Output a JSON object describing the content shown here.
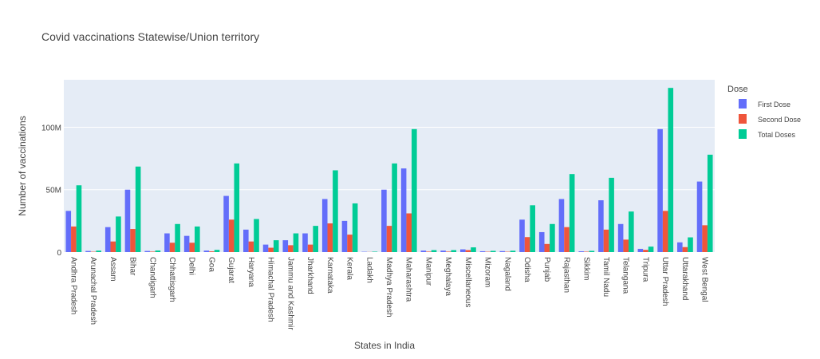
{
  "chart_data": {
    "type": "bar",
    "title": "Covid vaccinations Statewise/Union territory",
    "xlabel": "States in India",
    "ylabel": "Number of vaccinations",
    "ylim": [
      0,
      138000000
    ],
    "yticks": [
      0,
      50000000,
      100000000
    ],
    "ytick_labels": [
      "0",
      "50M",
      "100M"
    ],
    "grid": true,
    "legend": {
      "title": "Dose",
      "position": "top-right"
    },
    "categories": [
      "Andhra Pradesh",
      "Arunachal Pradesh",
      "Assam",
      "Bihar",
      "Chandigarh",
      "Chhattisgarh",
      "Delhi",
      "Goa",
      "Gujarat",
      "Haryana",
      "Himachal Pradesh",
      "Jammu and Kashmir",
      "Jharkhand",
      "Karnataka",
      "Kerala",
      "Ladakh",
      "Madhya Pradesh",
      "Maharashtra",
      "Manipur",
      "Meghalaya",
      "Miscellaneous",
      "Mizoram",
      "Nagaland",
      "Odisha",
      "Punjab",
      "Rajasthan",
      "Sikkim",
      "Tamil Nadu",
      "Telangana",
      "Tripura",
      "Uttar Pradesh",
      "Uttarakhand",
      "West Bengal"
    ],
    "series": [
      {
        "name": "First Dose",
        "color": "#636efa",
        "values": [
          33000000,
          900000,
          20000000,
          50000000,
          900000,
          15000000,
          13000000,
          1200000,
          45000000,
          18000000,
          6000000,
          9500000,
          15000000,
          42500000,
          25000000,
          250000,
          50000000,
          67000000,
          1200000,
          1200000,
          2200000,
          700000,
          800000,
          26000000,
          16000000,
          42500000,
          650000,
          41500000,
          22500000,
          2600000,
          98500000,
          7800000,
          56500000
        ]
      },
      {
        "name": "Second Dose",
        "color": "#ef553b",
        "values": [
          20500000,
          300000,
          8500000,
          18500000,
          400000,
          7500000,
          7500000,
          600000,
          26000000,
          8500000,
          3500000,
          5500000,
          6000000,
          23000000,
          14000000,
          100000,
          21000000,
          31000000,
          400000,
          400000,
          1600000,
          300000,
          300000,
          12000000,
          6500000,
          20000000,
          350000,
          18000000,
          10000000,
          1800000,
          33000000,
          4000000,
          21500000
        ]
      },
      {
        "name": "Total Doses",
        "color": "#00cc96",
        "values": [
          53500000,
          1200000,
          28500000,
          68500000,
          1300000,
          22500000,
          20500000,
          1800000,
          71000000,
          26500000,
          9500000,
          15000000,
          21000000,
          65500000,
          39000000,
          350000,
          71000000,
          98500000,
          1600000,
          1600000,
          3800000,
          1000000,
          1100000,
          37500000,
          22500000,
          62500000,
          1000000,
          59500000,
          32500000,
          4400000,
          131500000,
          11800000,
          78000000
        ]
      }
    ]
  }
}
